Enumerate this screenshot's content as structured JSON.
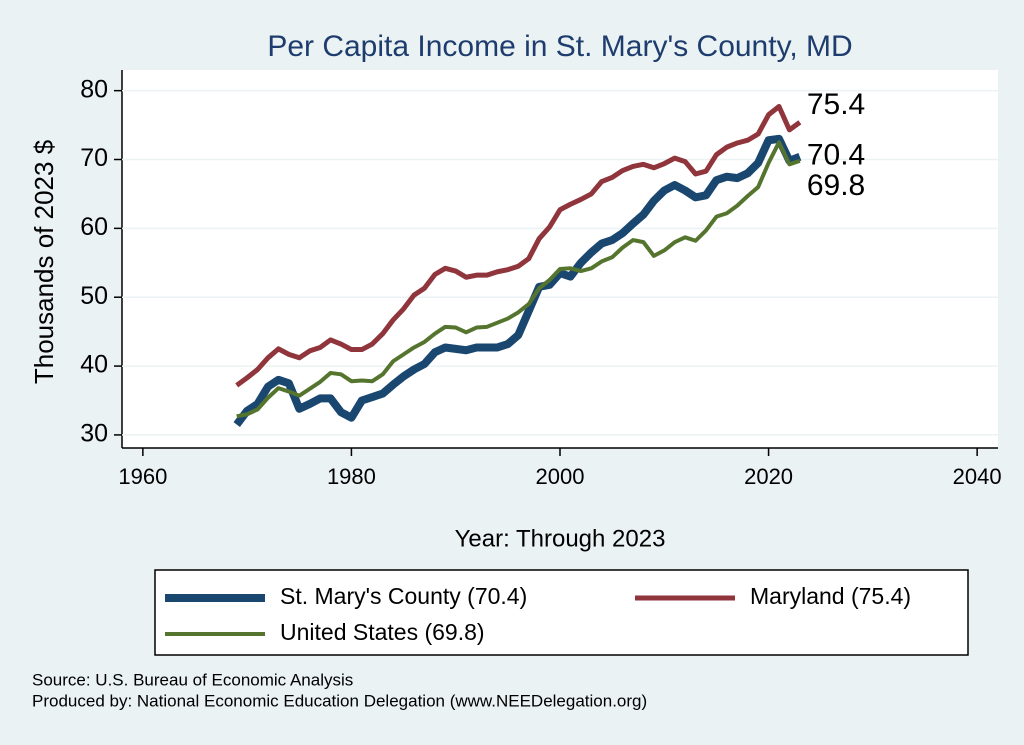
{
  "chart_data": {
    "type": "line",
    "title": "Per Capita Income in St. Mary's County, MD",
    "x_label": "Year: Through 2023",
    "y_label": "Thousands of 2023 $",
    "x": [
      1969,
      1970,
      1971,
      1972,
      1973,
      1974,
      1975,
      1976,
      1977,
      1978,
      1979,
      1980,
      1981,
      1982,
      1983,
      1984,
      1985,
      1986,
      1987,
      1988,
      1989,
      1990,
      1991,
      1992,
      1993,
      1994,
      1995,
      1996,
      1997,
      1998,
      1999,
      2000,
      2001,
      2002,
      2003,
      2004,
      2005,
      2006,
      2007,
      2008,
      2009,
      2010,
      2011,
      2012,
      2013,
      2014,
      2015,
      2016,
      2017,
      2018,
      2019,
      2020,
      2021,
      2022,
      2023
    ],
    "series": [
      {
        "name": "St. Mary's County (70.4)",
        "color": "#1a476f",
        "end_label": "70.4",
        "values": [
          31.5,
          33.5,
          34.5,
          37,
          38,
          37.5,
          33.8,
          34.5,
          35.3,
          35.3,
          33.3,
          32.5,
          35,
          35.5,
          36,
          37.3,
          38.5,
          39.5,
          40.3,
          42,
          42.7,
          42.5,
          42.3,
          42.7,
          42.7,
          42.7,
          43.2,
          44.5,
          48,
          51.5,
          51.8,
          53.5,
          53,
          55,
          56.5,
          57.8,
          58.3,
          59.3,
          60.7,
          62,
          64,
          65.5,
          66.3,
          65.5,
          64.5,
          64.8,
          67,
          67.5,
          67.3,
          68,
          69.5,
          72.8,
          73,
          69.8,
          70.4
        ]
      },
      {
        "name": "Maryland (75.4)",
        "color": "#90353b",
        "end_label": "75.4",
        "values": [
          37.2,
          38.3,
          39.5,
          41.2,
          42.5,
          41.7,
          41.2,
          42.2,
          42.7,
          43.8,
          43.2,
          42.4,
          42.4,
          43.2,
          44.7,
          46.7,
          48.3,
          50.3,
          51.3,
          53.3,
          54.2,
          53.8,
          52.9,
          53.2,
          53.2,
          53.7,
          54,
          54.5,
          55.6,
          58.5,
          60.2,
          62.7,
          63.5,
          64.2,
          65,
          66.8,
          67.4,
          68.4,
          69,
          69.3,
          68.8,
          69.4,
          70.2,
          69.7,
          67.9,
          68.3,
          70.7,
          71.8,
          72.4,
          72.8,
          73.7,
          76.5,
          77.7,
          74.3,
          75.4
        ]
      },
      {
        "name": "United States (69.8)",
        "color": "#55752f",
        "end_label": "69.8",
        "values": [
          32.7,
          33,
          33.7,
          35.4,
          36.8,
          36.3,
          35.7,
          36.7,
          37.7,
          39,
          38.8,
          37.8,
          37.9,
          37.8,
          38.8,
          40.7,
          41.7,
          42.7,
          43.5,
          44.7,
          45.7,
          45.6,
          44.9,
          45.6,
          45.7,
          46.3,
          46.9,
          47.8,
          49,
          51.3,
          52.5,
          54.1,
          54.2,
          53.8,
          54.2,
          55.2,
          55.8,
          57.2,
          58.3,
          58,
          56,
          56.8,
          58,
          58.7,
          58.2,
          59.7,
          61.7,
          62.2,
          63.3,
          64.7,
          66,
          69.5,
          72.5,
          69.3,
          69.8
        ]
      }
    ],
    "xlim": [
      1958,
      2042
    ],
    "xticks": [
      1960,
      1980,
      2000,
      2020,
      2040
    ],
    "ylim": [
      28.1,
      83
    ],
    "yticks": [
      30,
      40,
      50,
      60,
      70,
      80
    ],
    "grid": true,
    "legend": "bottom",
    "notes": [
      "Source: U.S. Bureau of Economic Analysis",
      "Produced by: National Economic Education Delegation (www.NEEDelegation.org)"
    ]
  }
}
